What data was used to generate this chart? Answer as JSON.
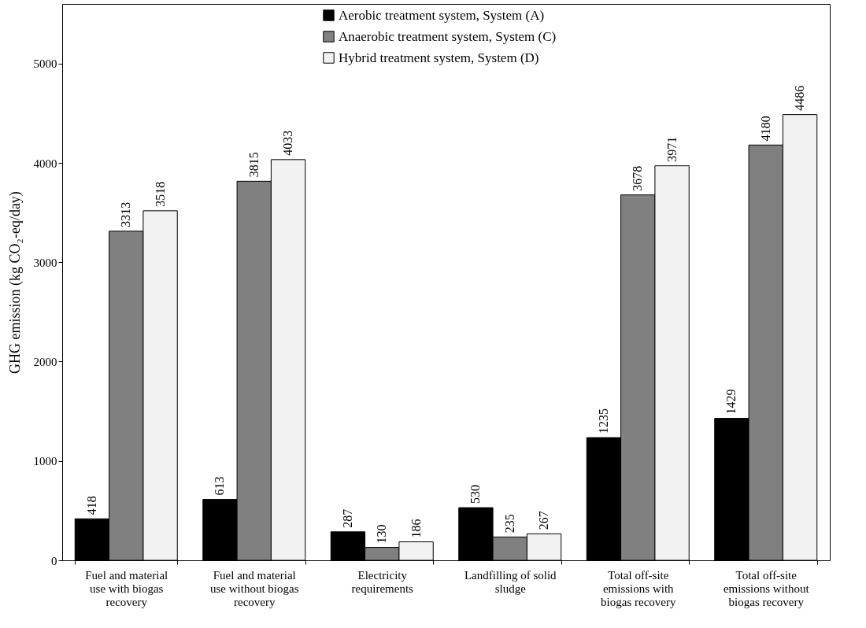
{
  "chart_data": {
    "type": "bar",
    "ylabel": "GHG emission (kg CO₂-eq/day)",
    "categories": [
      "Fuel and material use with biogas recovery",
      "Fuel and material use without biogas recovery",
      "Electricity requirements",
      "Landfilling of solid sludge",
      "Total off-site emissions with biogas recovery",
      "Total off-site emissions without biogas recovery"
    ],
    "series": [
      {
        "name": "Aerobic treatment system, System (A)",
        "color": "#000000",
        "values": [
          418,
          613,
          287,
          530,
          1235,
          1429
        ]
      },
      {
        "name": "Anaerobic treatment system, System (C)",
        "color": "#808080",
        "values": [
          3313,
          3815,
          130,
          235,
          3678,
          4180
        ]
      },
      {
        "name": "Hybrid treatment system, System (D)",
        "color": "#f2f2f2",
        "values": [
          3518,
          4033,
          186,
          267,
          3971,
          4486
        ]
      }
    ],
    "ylim": [
      0,
      5600
    ],
    "yticks": [
      0,
      1000,
      2000,
      3000,
      4000,
      5000
    ],
    "data_labels": true,
    "legend": "top",
    "grid": false
  }
}
